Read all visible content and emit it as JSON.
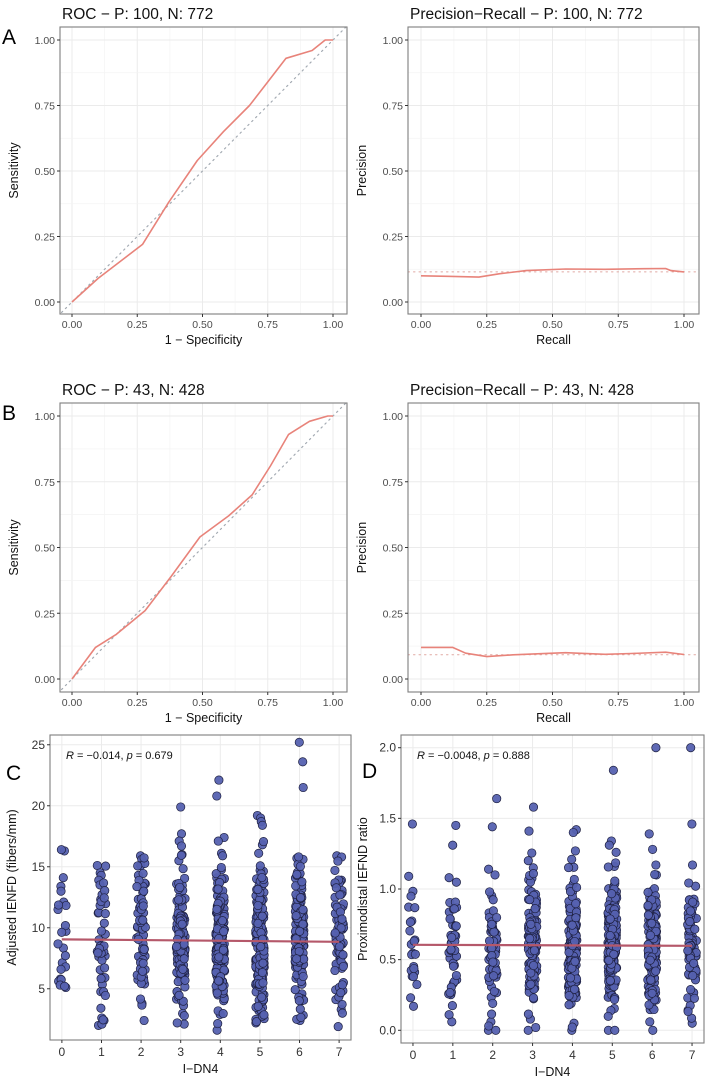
{
  "colors": {
    "curve": "#e8837a",
    "reference": "#a4abb3",
    "point_fill": "#5561b0",
    "point_stroke": "#1e2040",
    "regression": "#b5586a"
  },
  "chart_data": [
    {
      "id": "A_roc",
      "panel_label": "A",
      "type": "line",
      "title": "ROC − P: 100, N: 772",
      "xlabel": "1 − Specificity",
      "ylabel": "Sensitivity",
      "xlim": [
        0,
        1
      ],
      "ylim": [
        0,
        1
      ],
      "xticks": [
        "0.00",
        "0.25",
        "0.50",
        "0.75",
        "1.00"
      ],
      "yticks": [
        "0.00",
        "0.25",
        "0.50",
        "0.75",
        "1.00"
      ],
      "grid": true,
      "reference": {
        "type": "diagonal"
      },
      "x": [
        0.0,
        0.1,
        0.27,
        0.37,
        0.48,
        0.58,
        0.68,
        0.75,
        0.82,
        0.92,
        0.97,
        1.0
      ],
      "y": [
        0.0,
        0.09,
        0.22,
        0.38,
        0.54,
        0.65,
        0.75,
        0.84,
        0.93,
        0.96,
        1.0,
        1.0
      ]
    },
    {
      "id": "A_pr",
      "type": "line",
      "title": "Precision−Recall − P: 100, N: 772",
      "xlabel": "Recall",
      "ylabel": "Precision",
      "xlim": [
        0,
        1
      ],
      "ylim": [
        0,
        1
      ],
      "xticks": [
        "0.00",
        "0.25",
        "0.50",
        "0.75",
        "1.00"
      ],
      "yticks": [
        "0.00",
        "0.25",
        "0.50",
        "0.75",
        "1.00"
      ],
      "grid": true,
      "reference": {
        "type": "horizontal",
        "y": 0.115
      },
      "x": [
        0.0,
        0.1,
        0.22,
        0.3,
        0.4,
        0.55,
        0.7,
        0.85,
        0.93,
        0.95,
        1.0
      ],
      "y": [
        0.1,
        0.098,
        0.095,
        0.108,
        0.12,
        0.126,
        0.125,
        0.127,
        0.128,
        0.12,
        0.115
      ]
    },
    {
      "id": "B_roc",
      "panel_label": "B",
      "type": "line",
      "title": "ROC − P: 43, N: 428",
      "xlabel": "1 − Specificity",
      "ylabel": "Sensitivity",
      "xlim": [
        0,
        1
      ],
      "ylim": [
        0,
        1
      ],
      "xticks": [
        "0.00",
        "0.25",
        "0.50",
        "0.75",
        "1.00"
      ],
      "yticks": [
        "0.00",
        "0.25",
        "0.50",
        "0.75",
        "1.00"
      ],
      "grid": true,
      "reference": {
        "type": "diagonal"
      },
      "x": [
        0.0,
        0.09,
        0.17,
        0.28,
        0.38,
        0.49,
        0.6,
        0.69,
        0.76,
        0.83,
        0.91,
        0.98,
        1.0
      ],
      "y": [
        0.0,
        0.12,
        0.17,
        0.26,
        0.39,
        0.54,
        0.62,
        0.7,
        0.81,
        0.93,
        0.98,
        1.0,
        1.0
      ]
    },
    {
      "id": "B_pr",
      "type": "line",
      "title": "Precision−Recall − P: 43, N: 428",
      "xlabel": "Recall",
      "ylabel": "Precision",
      "xlim": [
        0,
        1
      ],
      "ylim": [
        0,
        1
      ],
      "xticks": [
        "0.00",
        "0.25",
        "0.50",
        "0.75",
        "1.00"
      ],
      "yticks": [
        "0.00",
        "0.25",
        "0.50",
        "0.75",
        "1.00"
      ],
      "grid": true,
      "reference": {
        "type": "horizontal",
        "y": 0.092
      },
      "x": [
        0.0,
        0.12,
        0.17,
        0.25,
        0.35,
        0.5,
        0.55,
        0.7,
        0.8,
        0.93,
        1.0
      ],
      "y": [
        0.12,
        0.12,
        0.098,
        0.085,
        0.092,
        0.098,
        0.1,
        0.094,
        0.097,
        0.102,
        0.093
      ]
    },
    {
      "id": "C_scatter",
      "panel_label": "C",
      "type": "scatter",
      "title": "",
      "xlabel": "I−DN4",
      "ylabel": "Adjusted IENFD (fibers/mm)",
      "annotation": {
        "r_label": "R",
        "r_value": " = −0.014, ",
        "p_label": "p",
        "p_value": " = 0.679"
      },
      "xlim": [
        -0.3,
        7.3
      ],
      "ylim": [
        0.8,
        25.8
      ],
      "xticks": [
        "0",
        "1",
        "2",
        "3",
        "4",
        "5",
        "6",
        "7"
      ],
      "yticks": [
        {
          "v": 5,
          "l": "5"
        },
        {
          "v": 10,
          "l": "10"
        },
        {
          "v": 15,
          "l": "15"
        },
        {
          "v": 20,
          "l": "20"
        },
        {
          "v": 25,
          "l": "25"
        }
      ],
      "grid": true,
      "regression": {
        "x": [
          0,
          7
        ],
        "y": [
          9.05,
          8.85
        ]
      },
      "groups": [
        {
          "x": 0,
          "n": 24,
          "min": 5.1,
          "max": 16.4,
          "outliers": [
            16.3,
            16.4,
            14.1,
            13.4,
            13.0,
            12.1,
            11.5,
            5.1,
            5.8
          ]
        },
        {
          "x": 1,
          "n": 48,
          "min": 2.0,
          "max": 15.1,
          "outliers": [
            15.1,
            14.5,
            14.3,
            13.9,
            2.0,
            2.4,
            2.6
          ]
        },
        {
          "x": 2,
          "n": 70,
          "min": 2.4,
          "max": 15.9,
          "outliers": [
            15.9,
            15.6,
            15.1,
            14.3,
            13.6,
            12.9,
            2.4,
            3.8
          ]
        },
        {
          "x": 3,
          "n": 140,
          "min": 2.1,
          "max": 19.9,
          "outliers": [
            19.9,
            17.7,
            17.1,
            16.7,
            16.0,
            15.5,
            2.1,
            2.2
          ]
        },
        {
          "x": 4,
          "n": 190,
          "min": 1.6,
          "max": 22.1,
          "outliers": [
            22.1,
            20.8,
            17.4,
            17.1,
            16.1,
            15.9,
            1.6,
            2.9
          ]
        },
        {
          "x": 5,
          "n": 200,
          "min": 2.2,
          "max": 19.2,
          "outliers": [
            19.2,
            19.0,
            18.7,
            18.4,
            16.8,
            16.1,
            2.2,
            2.5
          ]
        },
        {
          "x": 6,
          "n": 170,
          "min": 2.4,
          "max": 25.2,
          "outliers": [
            25.2,
            23.6,
            21.5,
            15.7,
            15.6,
            15.2,
            2.4,
            2.5
          ]
        },
        {
          "x": 7,
          "n": 80,
          "min": 1.9,
          "max": 15.9,
          "outliers": [
            15.9,
            15.8,
            14.7,
            13.9,
            13.8,
            1.9,
            3.3,
            4.5
          ]
        }
      ]
    },
    {
      "id": "D_scatter",
      "panel_label": "D",
      "type": "scatter",
      "title": "",
      "xlabel": "I−DN4",
      "ylabel": "Proximodistal IEFND ratio",
      "annotation": {
        "r_label": "R",
        "r_value": " = −0.0048, ",
        "p_label": "p",
        "p_value": " = 0.888"
      },
      "xlim": [
        -0.3,
        7.3
      ],
      "ylim": [
        -0.09,
        2.09
      ],
      "xticks": [
        "0",
        "1",
        "2",
        "3",
        "4",
        "5",
        "6",
        "7"
      ],
      "yticks": [
        {
          "v": 0,
          "l": "0.0"
        },
        {
          "v": 0.5,
          "l": "0.5"
        },
        {
          "v": 1.0,
          "l": "1.0"
        },
        {
          "v": 1.5,
          "l": "1.5"
        },
        {
          "v": 2.0,
          "l": "2.0"
        }
      ],
      "grid": true,
      "regression": {
        "x": [
          0,
          7
        ],
        "y": [
          0.605,
          0.598
        ]
      },
      "groups": [
        {
          "x": 0,
          "n": 24,
          "min": 0.17,
          "max": 1.46,
          "outliers": [
            1.46,
            1.09,
            0.23,
            0.17
          ]
        },
        {
          "x": 1,
          "n": 48,
          "min": 0.06,
          "max": 1.45,
          "outliers": [
            1.45,
            1.31,
            1.08,
            0.06,
            0.11
          ]
        },
        {
          "x": 2,
          "n": 70,
          "min": 0.0,
          "max": 1.64,
          "outliers": [
            1.64,
            1.44,
            1.14,
            1.1,
            0.0,
            0.0,
            0.06
          ]
        },
        {
          "x": 3,
          "n": 140,
          "min": 0.0,
          "max": 1.58,
          "outliers": [
            1.58,
            1.41,
            1.2,
            1.15,
            0.0,
            0.02
          ]
        },
        {
          "x": 4,
          "n": 190,
          "min": 0.0,
          "max": 1.42,
          "outliers": [
            1.42,
            1.4,
            1.27,
            1.21,
            0.0,
            0.05
          ]
        },
        {
          "x": 5,
          "n": 200,
          "min": 0.0,
          "max": 1.84,
          "outliers": [
            1.84,
            1.34,
            1.31,
            1.26,
            1.16,
            0.0,
            0.0
          ]
        },
        {
          "x": 6,
          "n": 170,
          "min": 0.0,
          "max": 2.0,
          "outliers": [
            2.0,
            1.39,
            1.28,
            1.17,
            1.1,
            0.0,
            0.06
          ]
        },
        {
          "x": 7,
          "n": 80,
          "min": 0.05,
          "max": 2.0,
          "outliers": [
            2.0,
            1.46,
            1.17,
            1.02,
            0.05
          ]
        }
      ]
    }
  ]
}
